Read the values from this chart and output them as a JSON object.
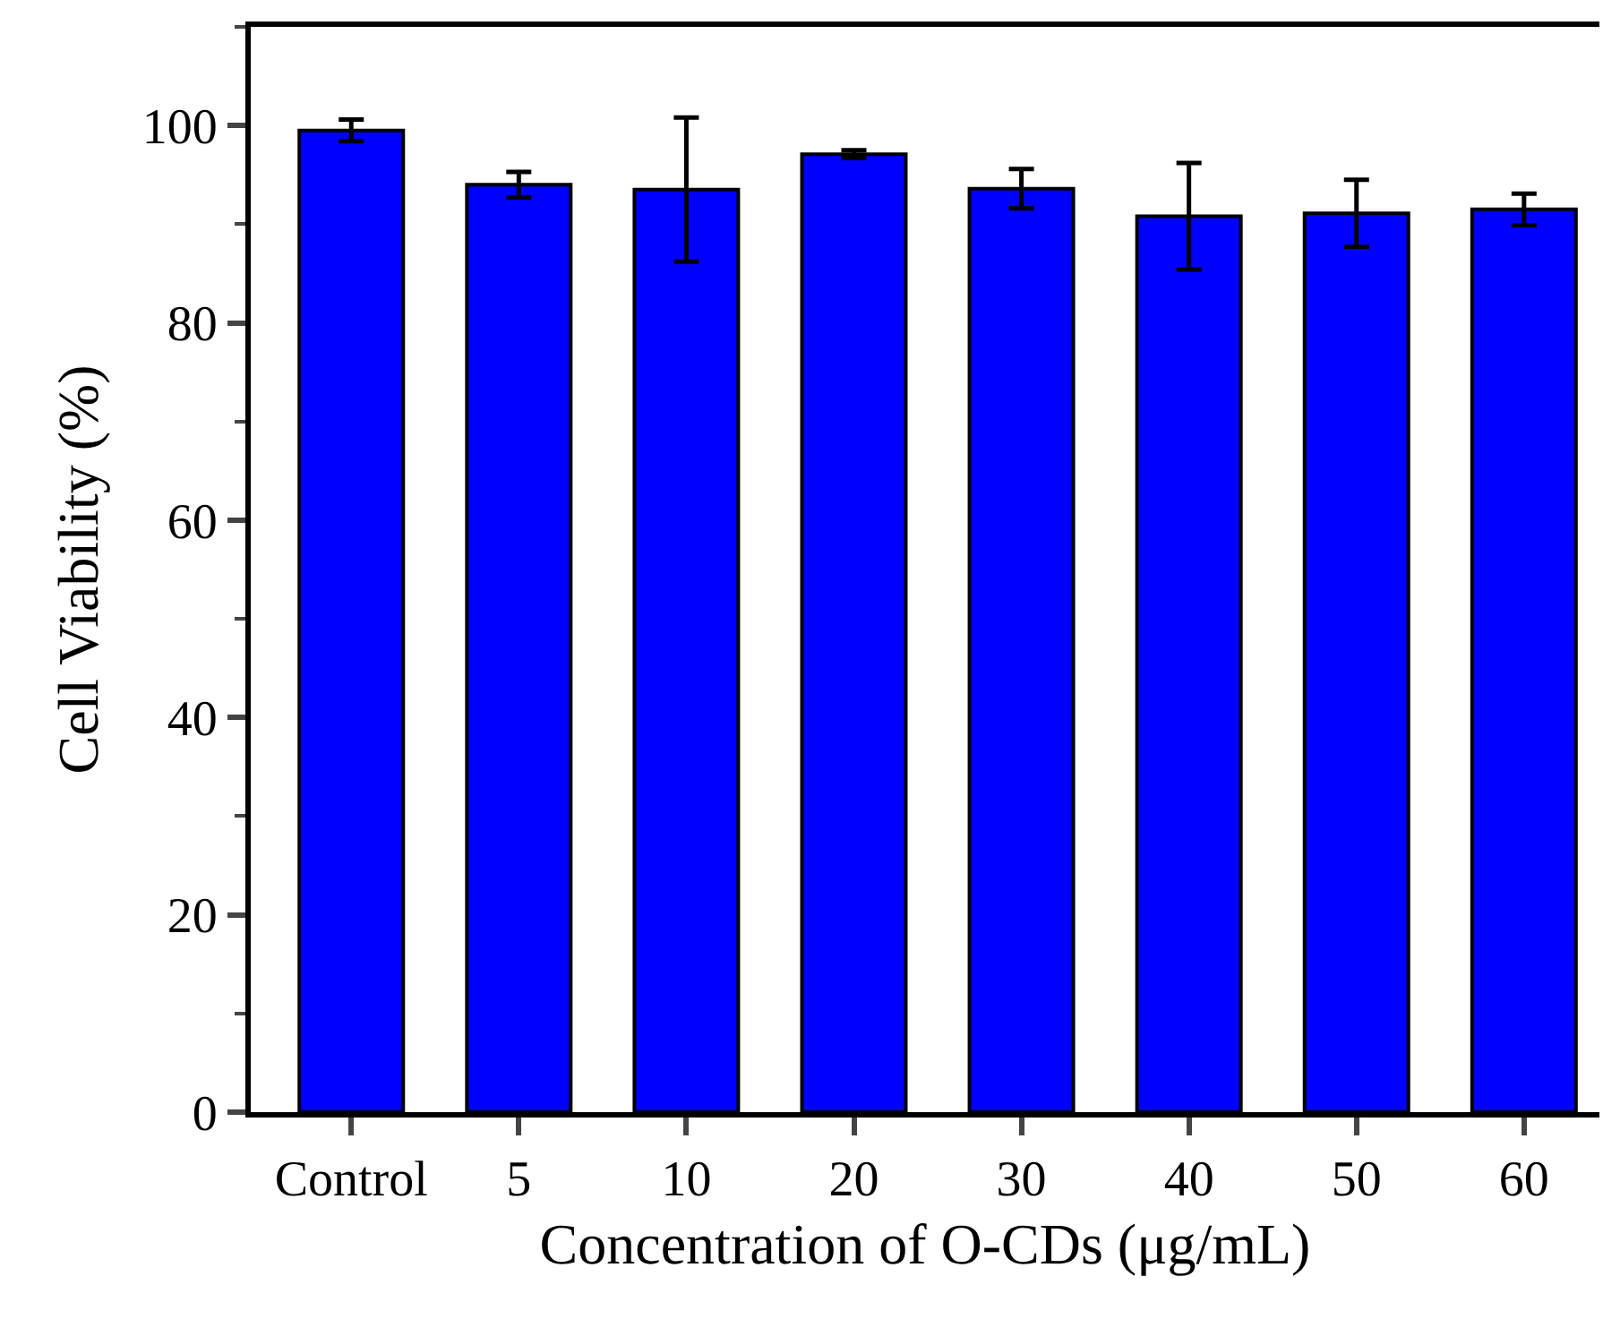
{
  "chart_data": {
    "type": "bar",
    "xlabel": "Concentration of O-CDs (μg/mL)",
    "ylabel": "Cell Viability (%)",
    "categories": [
      "Control",
      "5",
      "10",
      "20",
      "30",
      "40",
      "50",
      "60"
    ],
    "values": [
      99.5,
      94.0,
      93.5,
      97.1,
      93.6,
      90.8,
      91.1,
      91.5
    ],
    "errors": [
      1.1,
      1.3,
      7.3,
      0.4,
      2.0,
      5.4,
      3.4,
      1.6
    ],
    "color": "#0000ff",
    "ylim": [
      0,
      110
    ],
    "yticks": [
      0,
      20,
      40,
      60,
      80,
      100
    ],
    "grid": false,
    "legend": false
  }
}
